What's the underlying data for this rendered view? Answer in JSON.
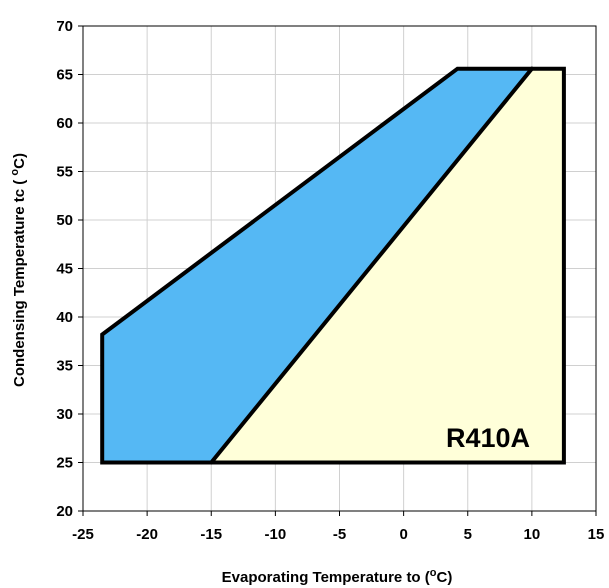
{
  "chart_data": {
    "type": "area",
    "title": "",
    "xlabel": "Evaporating Temperature to (",
    "xlabel_sup": "o",
    "xlabel_end": "C)",
    "ylabel": "Condensing Temperature tc ( ",
    "ylabel_sup": "o",
    "ylabel_end": "C)",
    "xlim": [
      -25,
      15
    ],
    "ylim": [
      20,
      70
    ],
    "x_ticks": [
      "-25",
      "-20",
      "-15",
      "-10",
      "-5",
      "0",
      "5",
      "10",
      "15"
    ],
    "y_ticks": [
      "20",
      "25",
      "30",
      "35",
      "40",
      "45",
      "50",
      "55",
      "60",
      "65",
      "70"
    ],
    "grid": true,
    "annotation": "R410A",
    "series": [
      {
        "color": "#ffffd9",
        "points": [
          [
            -15,
            25
          ],
          [
            12.5,
            25
          ],
          [
            12.5,
            65.6
          ],
          [
            10,
            65.6
          ]
        ]
      },
      {
        "color": "#55b8f4",
        "points": [
          [
            -23.5,
            25
          ],
          [
            -15,
            25
          ],
          [
            10,
            65.6
          ],
          [
            4.2,
            65.6
          ],
          [
            -23.5,
            38.2
          ]
        ]
      }
    ],
    "envelope": [
      [
        -23.5,
        25
      ],
      [
        12.5,
        25
      ],
      [
        12.5,
        65.6
      ],
      [
        4.2,
        65.6
      ],
      [
        -23.5,
        38.2
      ]
    ]
  }
}
